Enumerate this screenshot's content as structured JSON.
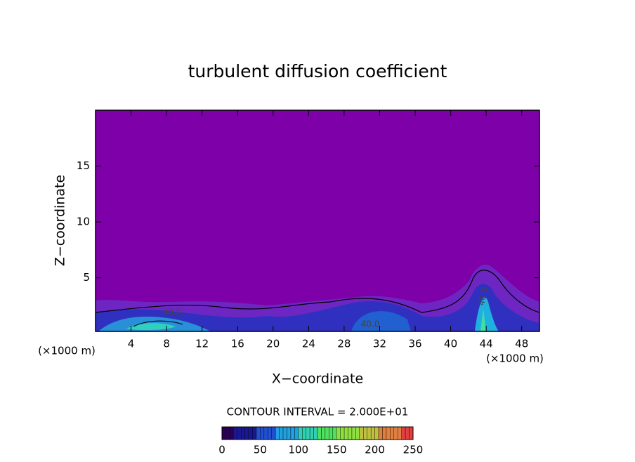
{
  "chart_data": {
    "type": "contour",
    "title": "turbulent diffusion coefficient",
    "xlabel": "X−coordinate",
    "ylabel": "Z−coordinate",
    "x_unit": "(×1000 m)",
    "xlim": [
      0,
      50
    ],
    "ylim": [
      0.2,
      20
    ],
    "xticks": [
      4,
      8,
      12,
      16,
      20,
      24,
      28,
      32,
      36,
      40,
      44,
      48
    ],
    "yticks": [
      5,
      10,
      15
    ],
    "background_color": "#7d00a8",
    "contour_labels": [
      "40.0",
      "40.0",
      "40.0"
    ],
    "colorbar": {
      "title": "CONTOUR INTERVAL = 2.000E+01",
      "lim": [
        0,
        250
      ],
      "ticks": [
        0,
        50,
        100,
        150,
        200,
        250
      ],
      "colors": [
        "#2a0050",
        "#1a1890",
        "#2050d0",
        "#20a0e0",
        "#30d0b0",
        "#50e060",
        "#90e040",
        "#c0c040",
        "#e08040",
        "#e04040"
      ]
    }
  }
}
